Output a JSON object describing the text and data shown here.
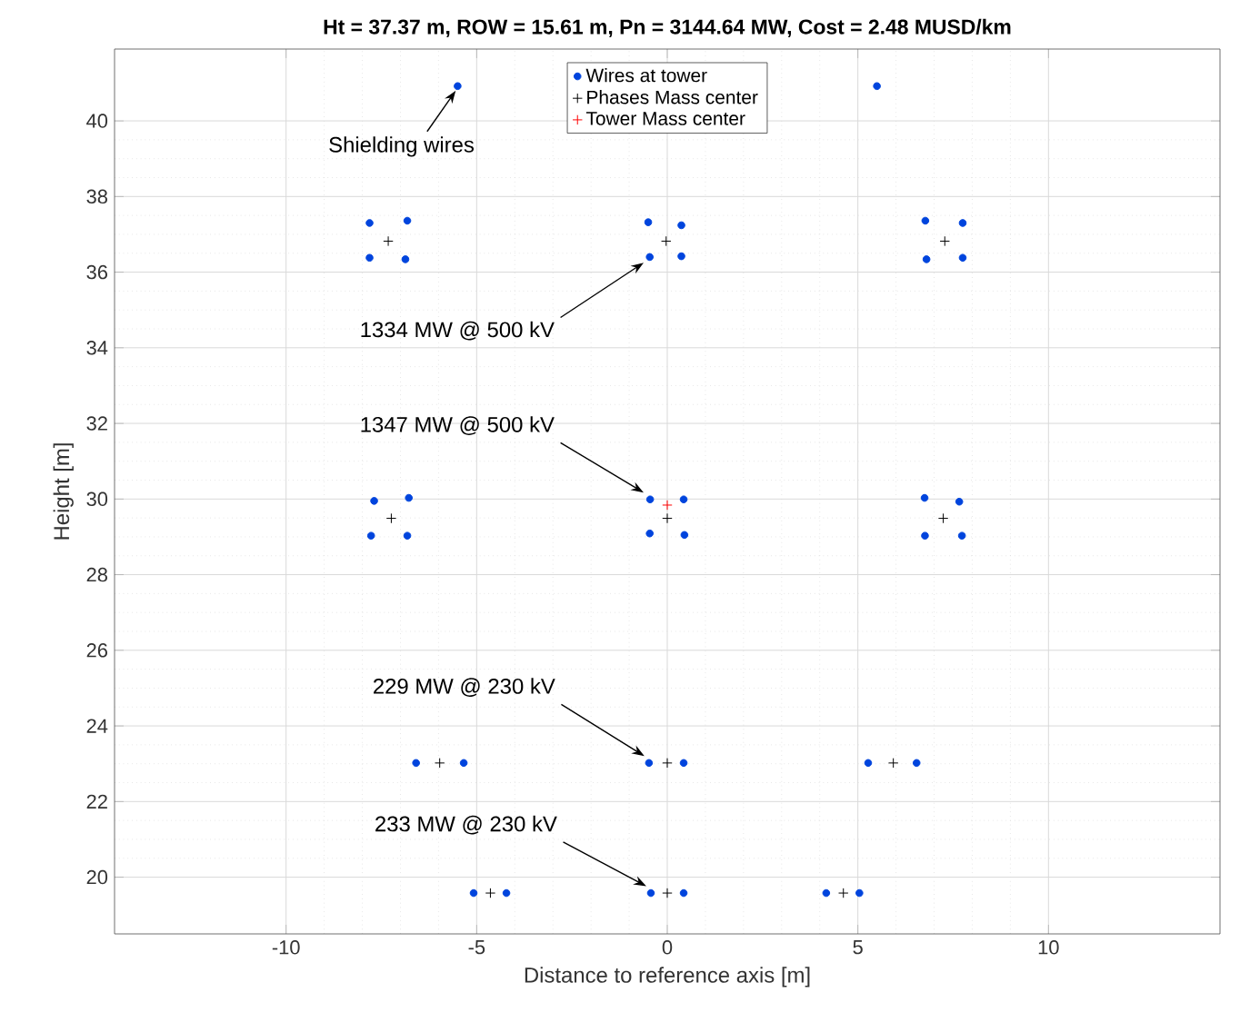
{
  "chart_data": {
    "type": "scatter",
    "title": "Ht = 37.37 m, ROW = 15.61 m, Pn = 3144.64 MW, Cost = 2.48 MUSD/km",
    "xlabel": "Distance to reference axis [m]",
    "ylabel": "Height [m]",
    "xlim": [
      -14.5,
      14.5
    ],
    "ylim": [
      18.5,
      41.9
    ],
    "xticks": [
      -10,
      -5,
      0,
      5,
      10
    ],
    "yticks": [
      20,
      22,
      24,
      26,
      28,
      30,
      32,
      34,
      36,
      38,
      40
    ],
    "grid": true,
    "legend": "top",
    "series": [
      {
        "name": "Wires at tower",
        "color": "#0044dd",
        "marker": "circle",
        "x": [
          -5.5,
          5.5,
          -7.81,
          -6.82,
          -7.81,
          -6.87,
          -0.5,
          0.37,
          -0.46,
          0.37,
          6.77,
          7.75,
          6.8,
          7.75,
          -7.69,
          -6.78,
          -7.77,
          -6.82,
          -0.45,
          0.43,
          -0.46,
          0.45,
          6.75,
          7.66,
          6.76,
          7.73,
          -6.59,
          -5.34,
          -0.48,
          0.43,
          5.27,
          6.54,
          -5.08,
          -4.22,
          -0.43,
          0.43,
          4.17,
          5.04
        ],
        "values": [
          40.92,
          40.92,
          37.3,
          37.36,
          36.38,
          36.34,
          37.32,
          37.24,
          36.4,
          36.42,
          37.36,
          37.3,
          36.34,
          36.38,
          29.95,
          30.03,
          29.03,
          29.03,
          29.99,
          29.99,
          29.09,
          29.05,
          30.03,
          29.93,
          29.03,
          29.03,
          23.02,
          23.02,
          23.02,
          23.02,
          23.02,
          23.02,
          19.58,
          19.58,
          19.58,
          19.58,
          19.58,
          19.58
        ]
      },
      {
        "name": "Phases Mass center",
        "color": "#000000",
        "marker": "cross",
        "x": [
          -7.32,
          -0.03,
          7.28,
          -7.24,
          0.0,
          7.24,
          -5.97,
          0.0,
          5.93,
          -4.64,
          0.0,
          4.62
        ],
        "values": [
          36.82,
          36.82,
          36.82,
          29.49,
          29.49,
          29.49,
          23.02,
          23.02,
          23.02,
          19.58,
          19.58,
          19.58
        ]
      },
      {
        "name": "Tower Mass center",
        "color": "#ff0000",
        "marker": "cross",
        "x": [
          0.0
        ],
        "values": [
          29.84
        ]
      }
    ],
    "annotations": [
      {
        "text": "Shielding wires",
        "x": -5.5,
        "y": 40.92
      },
      {
        "text": "1334 MW @ 500 kV",
        "x": -0.5,
        "y": 36.4
      },
      {
        "text": "1347 MW @ 500 kV",
        "x": -0.5,
        "y": 29.99
      },
      {
        "text": "229 MW @ 230 kV",
        "x": -0.48,
        "y": 23.02
      },
      {
        "text": "233 MW @ 230 kV",
        "x": -0.43,
        "y": 19.58
      }
    ]
  }
}
